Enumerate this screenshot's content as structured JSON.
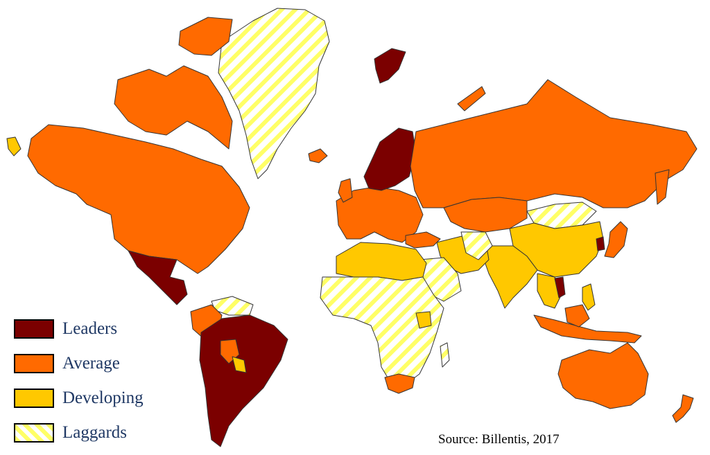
{
  "colors": {
    "leaders": "#7b0000",
    "average": "#ff6a00",
    "developing": "#ffc800",
    "laggards_stripe": "#ffff66",
    "laggards_bg": "#ffffff",
    "border": "#333333"
  },
  "legend": {
    "items": [
      {
        "label": "Leaders",
        "category": "leaders"
      },
      {
        "label": "Average",
        "category": "average"
      },
      {
        "label": "Developing",
        "category": "developing"
      },
      {
        "label": "Laggards",
        "category": "laggards"
      }
    ]
  },
  "source": "Source: Billentis, 2017"
}
